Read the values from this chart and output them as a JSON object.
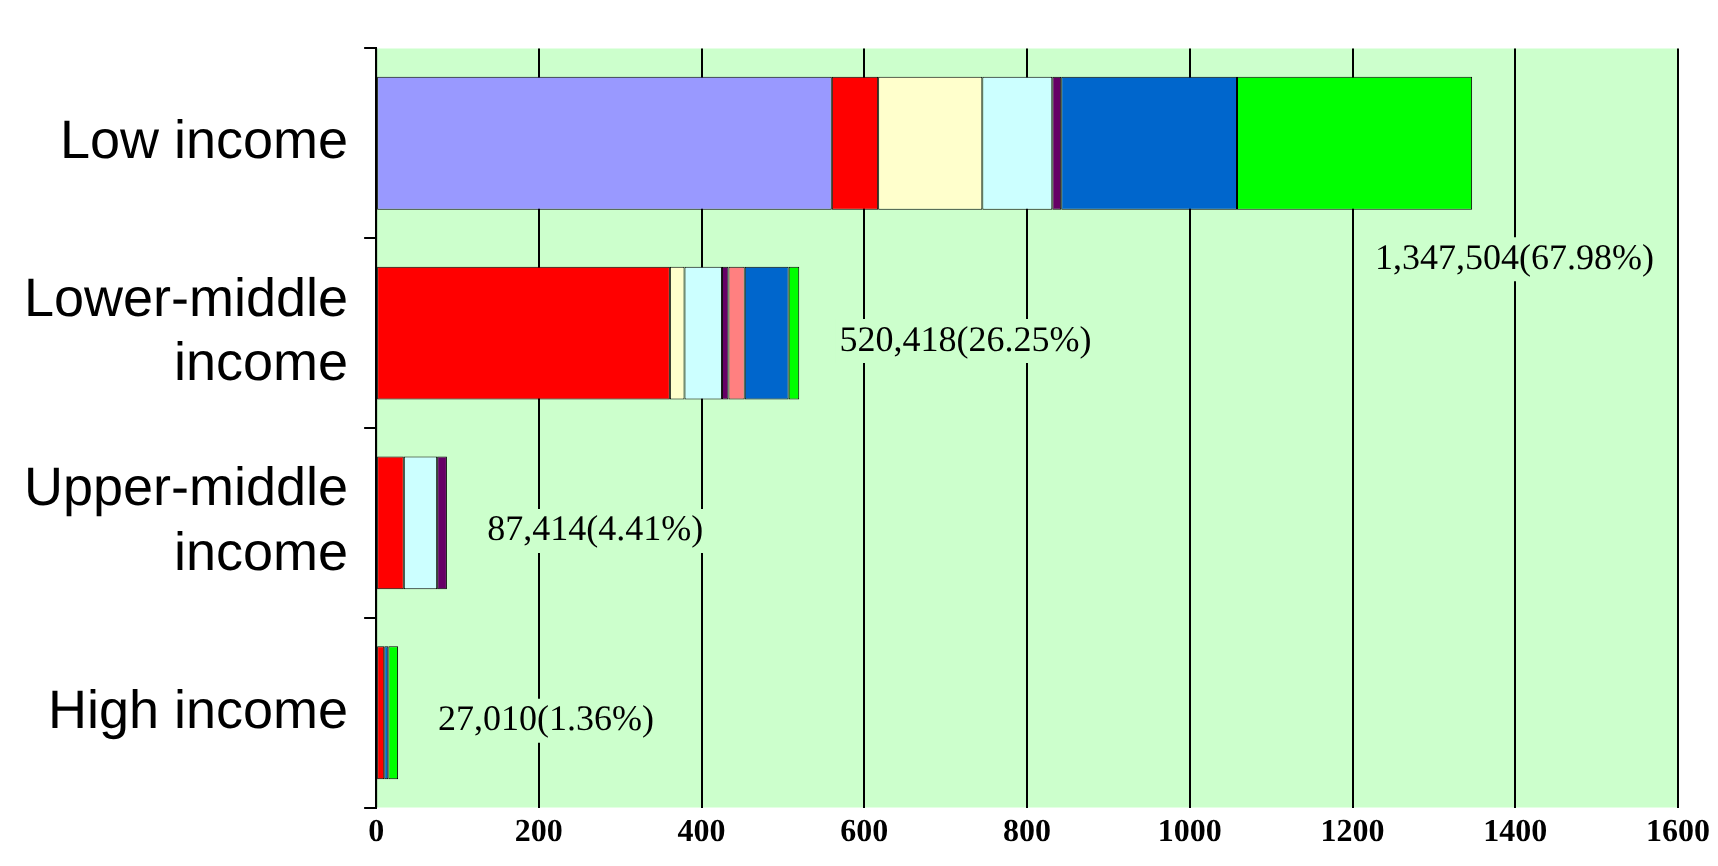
{
  "chart_data": {
    "type": "bar",
    "orientation": "horizontal",
    "stacked": true,
    "categories": [
      "Low income",
      "Lower-middle income",
      "Upper-middle income",
      "High income"
    ],
    "series": [
      {
        "color": "#9999ff",
        "values": [
          560,
          null,
          null,
          null
        ]
      },
      {
        "color": "#ff0000",
        "values": [
          57,
          361,
          34,
          10
        ]
      },
      {
        "color": "#ffffcc",
        "values": [
          128,
          18,
          null,
          null
        ]
      },
      {
        "color": "#ccffff",
        "values": [
          86,
          46,
          41,
          null
        ]
      },
      {
        "color": "#660066",
        "values": [
          11,
          8,
          12,
          null
        ]
      },
      {
        "color": "#ff8080",
        "values": [
          null,
          20,
          null,
          null
        ]
      },
      {
        "color": "#0066cc",
        "values": [
          216,
          54,
          null,
          5
        ]
      },
      {
        "color": "#00ff00",
        "values": [
          289,
          13,
          null,
          12
        ]
      }
    ],
    "xlim": [
      0,
      1600
    ],
    "xticks": [
      0,
      200,
      400,
      600,
      800,
      1000,
      1200,
      1400,
      1600
    ],
    "grid": "x",
    "legend": false,
    "annotations": [
      {
        "text": "1,347,504(67.98%)",
        "x": 1347.504,
        "y": "Low income"
      },
      {
        "text": "520,418(26.25%)",
        "x": 520.418,
        "y": "Lower-middle income"
      },
      {
        "text": "87,414(4.41%)",
        "x": 87.414,
        "y": "Upper-middle income"
      },
      {
        "text": "27,010(1.36%)",
        "x": 27.01,
        "y": "High income"
      }
    ]
  }
}
